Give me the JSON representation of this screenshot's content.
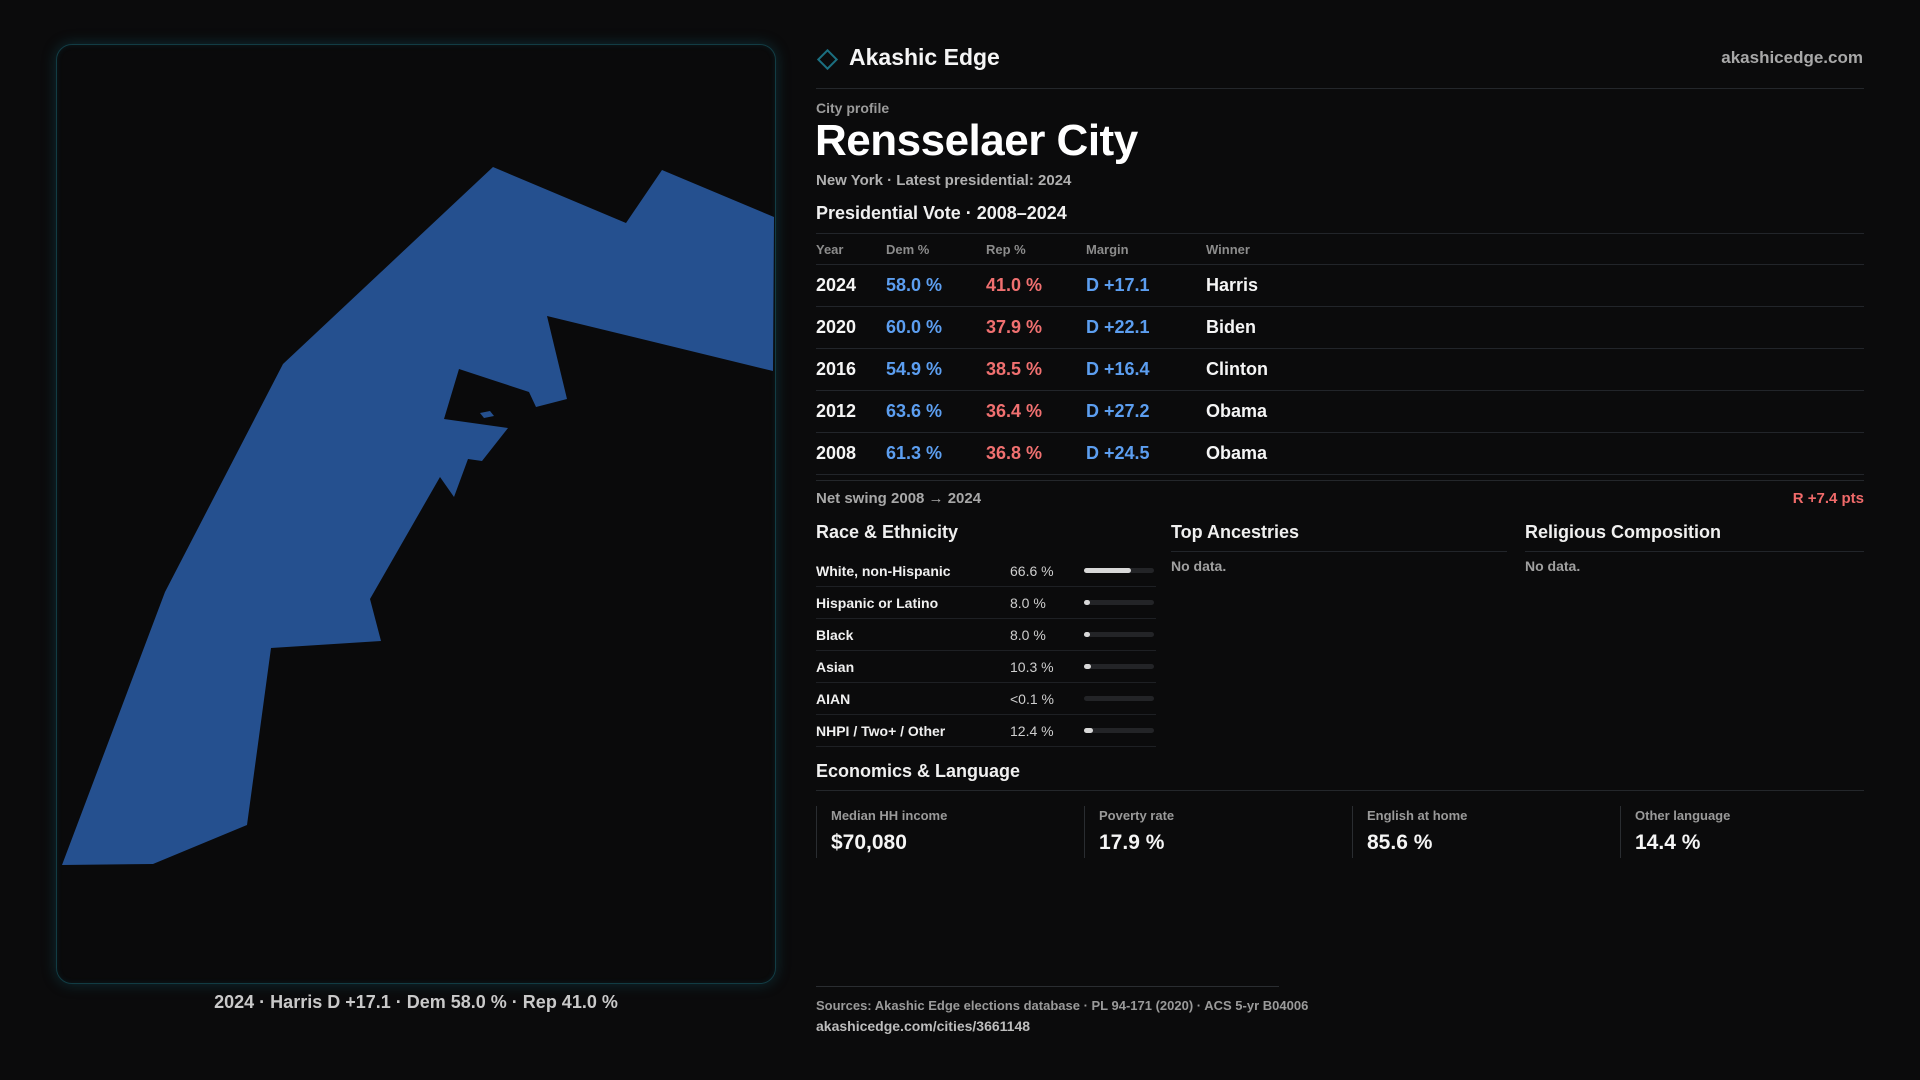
{
  "header": {
    "brand": "Akashic Edge",
    "site": "akashicedge.com"
  },
  "page": {
    "kicker": "City profile",
    "title": "Rensselaer City",
    "subtitle": "New York  · Latest presidential: 2024"
  },
  "map": {
    "caption": "2024 · Harris D +17.1 · Dem 58.0 % · Rep 41.0 %",
    "fill_color": "#25508f",
    "border_color": "#123c44"
  },
  "presidential": {
    "title": "Presidential Vote · 2008–2024",
    "columns": [
      "Year",
      "Dem %",
      "Rep %",
      "Margin",
      "Winner"
    ],
    "rows": [
      {
        "year": "2024",
        "dem": "58.0 %",
        "rep": "41.0 %",
        "margin": "D +17.1",
        "winner": "Harris"
      },
      {
        "year": "2020",
        "dem": "60.0 %",
        "rep": "37.9 %",
        "margin": "D +22.1",
        "winner": "Biden"
      },
      {
        "year": "2016",
        "dem": "54.9 %",
        "rep": "38.5 %",
        "margin": "D +16.4",
        "winner": "Clinton"
      },
      {
        "year": "2012",
        "dem": "63.6 %",
        "rep": "36.4 %",
        "margin": "D +27.2",
        "winner": "Obama"
      },
      {
        "year": "2008",
        "dem": "61.3 %",
        "rep": "36.8 %",
        "margin": "D +24.5",
        "winner": "Obama"
      }
    ],
    "swing_label": "Net swing 2008 → 2024",
    "swing_value": "R +7.4 pts",
    "dem_color": "#5c9ef0",
    "rep_color": "#f07070"
  },
  "race": {
    "title": "Race & Ethnicity",
    "rows": [
      {
        "label": "White, non-Hispanic",
        "value": "66.6 %",
        "fraction": 0.666
      },
      {
        "label": "Hispanic or Latino",
        "value": "8.0 %",
        "fraction": 0.08
      },
      {
        "label": "Black",
        "value": "8.0 %",
        "fraction": 0.08
      },
      {
        "label": "Asian",
        "value": "10.3 %",
        "fraction": 0.103
      },
      {
        "label": "AIAN",
        "value": "<0.1 %",
        "fraction": 0.001
      },
      {
        "label": "NHPI / Two+ / Other",
        "value": "12.4 %",
        "fraction": 0.124
      }
    ]
  },
  "ancestries": {
    "title": "Top Ancestries",
    "empty": "No data."
  },
  "religion": {
    "title": "Religious Composition",
    "empty": "No data."
  },
  "economics": {
    "title": "Economics & Language",
    "stats": [
      {
        "label": "Median HH income",
        "value": "$70,080"
      },
      {
        "label": "Poverty rate",
        "value": "17.9 %"
      },
      {
        "label": "English at home",
        "value": "85.6 %"
      },
      {
        "label": "Other language",
        "value": "14.4 %"
      }
    ]
  },
  "footer": {
    "sources": "Sources: Akashic Edge elections database · PL 94-171 (2020) · ACS 5-yr B04006",
    "url": "akashicedge.com/cities/3661148"
  }
}
